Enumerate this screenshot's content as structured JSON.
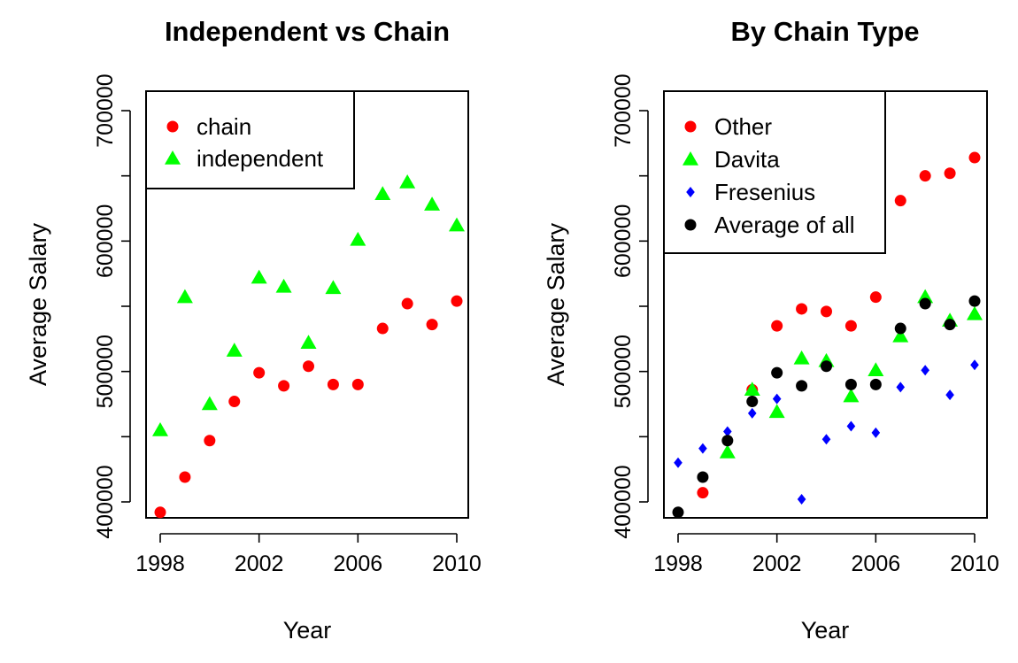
{
  "chart_data": [
    {
      "type": "scatter",
      "title": "Independent vs Chain",
      "xlabel": "Year",
      "ylabel": "Average Salary",
      "xlim": [
        1998,
        2010
      ],
      "ylim": [
        400000,
        700000
      ],
      "x_ticks": [
        "1998",
        "2002",
        "2006",
        "2010"
      ],
      "y_ticks": [
        "400000",
        "500000",
        "600000",
        "700000"
      ],
      "legend_position": "top-left",
      "series": [
        {
          "name": "chain",
          "marker": "circle",
          "color": "#ff0000",
          "x": [
            1998,
            1999,
            2000,
            2001,
            2002,
            2003,
            2004,
            2005,
            2006,
            2007,
            2008,
            2009,
            2010
          ],
          "y": [
            392000,
            419000,
            447000,
            477000,
            499000,
            489000,
            504000,
            490000,
            490000,
            533000,
            552000,
            536000,
            554000
          ]
        },
        {
          "name": "independent",
          "marker": "triangle",
          "color": "#00ff00",
          "x": [
            1998,
            1999,
            2000,
            2001,
            2002,
            2003,
            2004,
            2005,
            2006,
            2007,
            2008,
            2009,
            2010
          ],
          "y": [
            455000,
            557000,
            475000,
            516000,
            572000,
            565000,
            522000,
            564000,
            601000,
            636000,
            645000,
            628000,
            612000
          ]
        }
      ]
    },
    {
      "type": "scatter",
      "title": "By Chain Type",
      "xlabel": "Year",
      "ylabel": "Average Salary",
      "xlim": [
        1998,
        2010
      ],
      "ylim": [
        400000,
        700000
      ],
      "x_ticks": [
        "1998",
        "2002",
        "2006",
        "2010"
      ],
      "y_ticks": [
        "400000",
        "500000",
        "600000",
        "700000"
      ],
      "legend_position": "top-left",
      "series": [
        {
          "name": "Other",
          "marker": "circle",
          "color": "#ff0000",
          "x": [
            1999,
            2001,
            2002,
            2003,
            2004,
            2005,
            2006,
            2007,
            2008,
            2009,
            2010
          ],
          "y": [
            407000,
            486000,
            535000,
            548000,
            546000,
            535000,
            557000,
            631000,
            650000,
            652000,
            664000
          ]
        },
        {
          "name": "Davita",
          "marker": "triangle",
          "color": "#00ff00",
          "x": [
            2000,
            2001,
            2002,
            2003,
            2004,
            2005,
            2006,
            2007,
            2008,
            2009,
            2010
          ],
          "y": [
            438000,
            486000,
            469000,
            510000,
            508000,
            481000,
            501000,
            527000,
            557000,
            539000,
            544000
          ]
        },
        {
          "name": "Fresenius",
          "marker": "diamond",
          "color": "#0000ff",
          "x": [
            1998,
            1999,
            2000,
            2001,
            2002,
            2003,
            2004,
            2005,
            2006,
            2007,
            2008,
            2009,
            2010
          ],
          "y": [
            430000,
            441000,
            454000,
            468000,
            479000,
            402000,
            448000,
            458000,
            453000,
            488000,
            501000,
            482000,
            505000
          ]
        },
        {
          "name": "Average of all",
          "marker": "circle",
          "color": "#000000",
          "x": [
            1998,
            1999,
            2000,
            2001,
            2002,
            2003,
            2004,
            2005,
            2006,
            2007,
            2008,
            2009,
            2010
          ],
          "y": [
            392000,
            419000,
            447000,
            477000,
            499000,
            489000,
            504000,
            490000,
            490000,
            533000,
            552000,
            536000,
            554000
          ]
        }
      ]
    }
  ]
}
